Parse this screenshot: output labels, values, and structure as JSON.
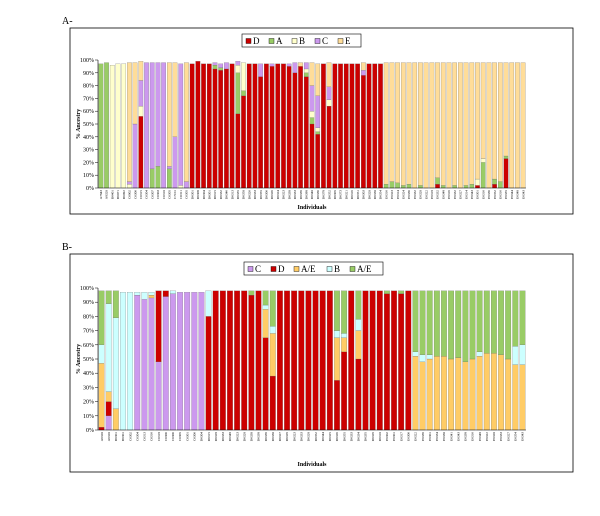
{
  "chart_data": [
    {
      "panel": "A-",
      "type": "bar",
      "stacked": true,
      "xlabel": "Individuals",
      "ylabel": "% Ancestry",
      "ylim": [
        0,
        100
      ],
      "yticks": [
        "0%",
        "10%",
        "20%",
        "30%",
        "40%",
        "50%",
        "60%",
        "70%",
        "80%",
        "90%",
        "100%"
      ],
      "legend_placement": "top-center",
      "series": [
        {
          "name": "D",
          "color": "#cc0000"
        },
        {
          "name": "A",
          "color": "#99cc66"
        },
        {
          "name": "B",
          "color": "#ffffcc"
        },
        {
          "name": "C",
          "color": "#cc99ee"
        },
        {
          "name": "E",
          "color": "#ffdd99"
        }
      ],
      "categories": [
        "A7843",
        "A8320",
        "B6401",
        "B6071",
        "B6092",
        "C6002",
        "C6306",
        "C6315",
        "C6304",
        "C6307",
        "C6303",
        "C6310",
        "C6305",
        "C7101",
        "C6311",
        "C6305",
        "D6301",
        "D6308",
        "D6304",
        "D6301",
        "D6315",
        "D6332",
        "D6346",
        "D6313",
        "D6335",
        "D6350",
        "D6326",
        "D6333",
        "D6355",
        "D6306",
        "D6326",
        "D6324",
        "D6323",
        "D6330",
        "D6333",
        "D6339",
        "D6388",
        "D6340",
        "D6336",
        "D6378",
        "D6352",
        "D6305",
        "D6373",
        "D6321",
        "D6316",
        "D6351",
        "D6303",
        "D6320",
        "D6330",
        "D6354",
        "E6316",
        "E6323",
        "E6314",
        "E6324",
        "E6336",
        "E6332",
        "E6320",
        "E6322",
        "E6318",
        "E6332",
        "E6348",
        "E6316",
        "E6332",
        "E6327",
        "E6314",
        "E6343",
        "E6301",
        "E6316",
        "E6336",
        "E6352",
        "E6316",
        "E6335",
        "E6344",
        "E6340",
        "E6343"
      ],
      "stacks": [
        [
          0,
          97,
          0,
          0,
          0
        ],
        [
          0,
          98,
          0,
          0,
          0
        ],
        [
          0,
          0,
          96,
          0,
          0
        ],
        [
          0,
          0,
          97,
          0,
          0
        ],
        [
          0,
          0,
          97,
          0,
          0
        ],
        [
          0,
          0,
          3,
          2,
          93
        ],
        [
          0,
          0,
          0,
          50,
          48
        ],
        [
          56,
          0,
          8,
          20,
          15
        ],
        [
          0,
          0,
          0,
          98,
          0
        ],
        [
          0,
          15,
          0,
          83,
          0
        ],
        [
          0,
          17,
          0,
          81,
          0
        ],
        [
          0,
          0,
          0,
          98,
          0
        ],
        [
          0,
          15,
          0,
          2,
          81
        ],
        [
          0,
          0,
          0,
          40,
          58
        ],
        [
          0,
          0,
          2,
          95,
          0
        ],
        [
          0,
          0,
          0,
          5,
          93
        ],
        [
          97,
          0,
          0,
          0,
          0
        ],
        [
          99,
          0,
          0,
          0,
          0
        ],
        [
          97,
          0,
          0,
          0,
          0
        ],
        [
          97,
          0,
          0,
          0,
          0
        ],
        [
          93,
          3,
          0,
          2,
          0
        ],
        [
          92,
          2,
          0,
          3,
          0
        ],
        [
          93,
          0,
          0,
          5,
          0
        ],
        [
          97,
          0,
          0,
          0,
          0
        ],
        [
          58,
          32,
          6,
          3,
          0
        ],
        [
          72,
          4,
          22,
          0,
          0
        ],
        [
          97,
          0,
          0,
          0,
          0
        ],
        [
          97,
          0,
          0,
          0,
          0
        ],
        [
          87,
          0,
          0,
          10,
          0
        ],
        [
          97,
          0,
          0,
          0,
          0
        ],
        [
          95,
          0,
          0,
          2,
          0
        ],
        [
          97,
          0,
          0,
          0,
          0
        ],
        [
          97,
          0,
          0,
          0,
          0
        ],
        [
          95,
          0,
          0,
          2,
          0
        ],
        [
          90,
          0,
          0,
          8,
          0
        ],
        [
          95,
          0,
          0,
          0,
          3
        ],
        [
          87,
          3,
          3,
          5,
          0
        ],
        [
          50,
          5,
          5,
          20,
          18
        ],
        [
          42,
          2,
          3,
          25,
          25
        ],
        [
          97,
          0,
          0,
          0,
          0
        ],
        [
          64,
          0,
          5,
          10,
          19
        ],
        [
          97,
          0,
          0,
          0,
          0
        ],
        [
          97,
          0,
          0,
          0,
          0
        ],
        [
          97,
          0,
          0,
          0,
          0
        ],
        [
          97,
          0,
          0,
          0,
          0
        ],
        [
          97,
          0,
          0,
          0,
          0
        ],
        [
          88,
          0,
          0,
          4,
          6
        ],
        [
          97,
          0,
          0,
          0,
          0
        ],
        [
          97,
          0,
          0,
          0,
          0
        ],
        [
          97,
          0,
          0,
          0,
          0
        ],
        [
          0,
          3,
          0,
          0,
          95
        ],
        [
          0,
          5,
          0,
          0,
          93
        ],
        [
          0,
          4,
          0,
          0,
          94
        ],
        [
          0,
          2,
          0,
          0,
          96
        ],
        [
          0,
          3,
          0,
          0,
          95
        ],
        [
          0,
          0,
          0,
          0,
          98
        ],
        [
          0,
          2,
          0,
          0,
          96
        ],
        [
          0,
          0,
          0,
          0,
          98
        ],
        [
          0,
          0,
          0,
          0,
          98
        ],
        [
          3,
          5,
          0,
          0,
          90
        ],
        [
          0,
          2,
          0,
          0,
          96
        ],
        [
          0,
          0,
          0,
          0,
          98
        ],
        [
          0,
          2,
          0,
          0,
          96
        ],
        [
          0,
          0,
          0,
          0,
          98
        ],
        [
          0,
          2,
          0,
          0,
          96
        ],
        [
          0,
          3,
          0,
          0,
          95
        ],
        [
          2,
          0,
          5,
          0,
          91
        ],
        [
          0,
          20,
          3,
          0,
          75
        ],
        [
          0,
          0,
          0,
          0,
          98
        ],
        [
          3,
          4,
          0,
          0,
          91
        ],
        [
          0,
          5,
          0,
          0,
          93
        ],
        [
          23,
          2,
          0,
          0,
          73
        ],
        [
          0,
          0,
          0,
          0,
          98
        ],
        [
          0,
          0,
          0,
          0,
          98
        ],
        [
          0,
          0,
          0,
          0,
          98
        ]
      ]
    },
    {
      "panel": "B-",
      "type": "bar",
      "stacked": true,
      "xlabel": "Individuals",
      "ylabel": "% Ancestry",
      "ylim": [
        0,
        100
      ],
      "yticks": [
        "0%",
        "10%",
        "20%",
        "30%",
        "40%",
        "50%",
        "60%",
        "70%",
        "80%",
        "90%",
        "100%"
      ],
      "legend_placement": "top-center",
      "series": [
        {
          "name": "C",
          "color": "#cc99ee"
        },
        {
          "name": "D",
          "color": "#cc0000"
        },
        {
          "name": "A/E",
          "color": "#ffcc66"
        },
        {
          "name": "B",
          "color": "#ccffff"
        },
        {
          "name": "A/E",
          "color": "#99cc66"
        }
      ],
      "categories": [
        "A6320",
        "A6320",
        "B6301",
        "B6301",
        "C6302",
        "C6304",
        "C6313",
        "C6316",
        "C6318",
        "C6306",
        "C6306",
        "C6305",
        "C6301",
        "C6306",
        "D6304",
        "D6315",
        "D6328",
        "D6333",
        "D6348",
        "D6323",
        "D6328",
        "D6330",
        "D6338",
        "D6339",
        "D6330",
        "D6327",
        "D6329",
        "D6323",
        "D6333",
        "D6328",
        "D6352",
        "D6344",
        "D6325",
        "D6326",
        "D6355",
        "D6333",
        "D6334",
        "D6335",
        "D6329",
        "D6310",
        "E6302",
        "E6301",
        "E6317",
        "E6306",
        "E6322",
        "E6339",
        "E6301",
        "E6334",
        "E6330",
        "E6341",
        "E6343",
        "E6338",
        "E6316",
        "E6348",
        "E6322",
        "E6320",
        "E6333",
        "E6327",
        "E6354",
        "E6343"
      ],
      "stacks": [
        [
          0,
          2,
          45,
          13,
          38
        ],
        [
          10,
          10,
          7,
          62,
          9
        ],
        [
          0,
          0,
          15,
          64,
          19
        ],
        [
          0,
          0,
          0,
          97,
          0
        ],
        [
          0,
          0,
          0,
          97,
          0
        ],
        [
          95,
          0,
          0,
          2,
          0
        ],
        [
          92,
          0,
          0,
          5,
          0
        ],
        [
          93,
          0,
          2,
          2,
          0
        ],
        [
          48,
          50,
          0,
          0,
          0
        ],
        [
          94,
          4,
          0,
          0,
          0
        ],
        [
          96,
          0,
          0,
          2,
          0
        ],
        [
          97,
          0,
          0,
          0,
          0
        ],
        [
          97,
          0,
          0,
          0,
          0
        ],
        [
          97,
          0,
          0,
          0,
          0
        ],
        [
          97,
          0,
          0,
          0,
          0
        ],
        [
          0,
          80,
          0,
          18,
          0
        ],
        [
          0,
          98,
          0,
          0,
          0
        ],
        [
          0,
          98,
          0,
          0,
          0
        ],
        [
          0,
          98,
          0,
          0,
          0
        ],
        [
          0,
          98,
          0,
          0,
          0
        ],
        [
          0,
          98,
          0,
          0,
          0
        ],
        [
          0,
          95,
          0,
          0,
          3
        ],
        [
          0,
          98,
          0,
          0,
          0
        ],
        [
          0,
          65,
          20,
          3,
          10
        ],
        [
          0,
          38,
          30,
          5,
          25
        ],
        [
          0,
          98,
          0,
          0,
          0
        ],
        [
          0,
          98,
          0,
          0,
          0
        ],
        [
          0,
          98,
          0,
          0,
          0
        ],
        [
          0,
          98,
          0,
          0,
          0
        ],
        [
          0,
          98,
          0,
          0,
          0
        ],
        [
          0,
          98,
          0,
          0,
          0
        ],
        [
          0,
          98,
          0,
          0,
          0
        ],
        [
          0,
          98,
          0,
          0,
          0
        ],
        [
          0,
          35,
          30,
          5,
          28
        ],
        [
          0,
          55,
          10,
          3,
          30
        ],
        [
          0,
          98,
          0,
          0,
          0
        ],
        [
          0,
          50,
          20,
          8,
          20
        ],
        [
          0,
          98,
          0,
          0,
          0
        ],
        [
          0,
          98,
          0,
          0,
          0
        ],
        [
          0,
          98,
          0,
          0,
          0
        ],
        [
          0,
          96,
          0,
          0,
          2
        ],
        [
          0,
          98,
          0,
          0,
          0
        ],
        [
          0,
          96,
          0,
          0,
          2
        ],
        [
          0,
          98,
          0,
          0,
          0
        ],
        [
          0,
          0,
          52,
          3,
          43
        ],
        [
          0,
          0,
          48,
          5,
          45
        ],
        [
          0,
          0,
          50,
          3,
          45
        ],
        [
          0,
          0,
          52,
          0,
          46
        ],
        [
          0,
          0,
          52,
          0,
          46
        ],
        [
          0,
          0,
          50,
          0,
          48
        ],
        [
          0,
          0,
          51,
          0,
          47
        ],
        [
          0,
          0,
          48,
          0,
          50
        ],
        [
          0,
          0,
          50,
          0,
          48
        ],
        [
          0,
          0,
          52,
          3,
          43
        ],
        [
          0,
          0,
          54,
          0,
          44
        ],
        [
          0,
          0,
          54,
          0,
          44
        ],
        [
          0,
          0,
          53,
          0,
          45
        ],
        [
          0,
          0,
          50,
          0,
          48
        ],
        [
          0,
          0,
          46,
          13,
          39
        ],
        [
          0,
          0,
          46,
          14,
          38
        ]
      ]
    }
  ]
}
